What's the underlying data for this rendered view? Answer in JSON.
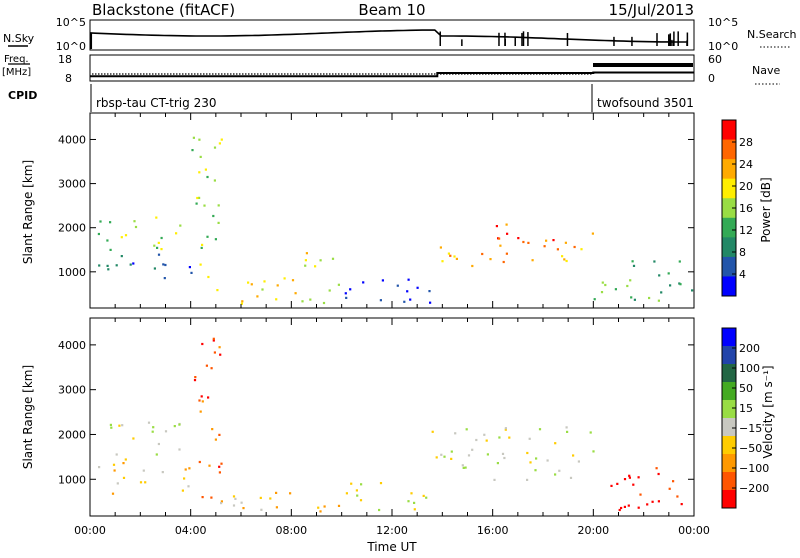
{
  "header": {
    "site": "Blackstone (fitACF)",
    "beam": "Beam 10",
    "date": "15/Jul/2013"
  },
  "summary": {
    "nsky_label": "N.Sky",
    "nsearch_label": "N.Search",
    "nsky_ticks": [
      "10^5",
      "10^0"
    ],
    "nsearch_ticks": [
      "10^5",
      "10^0"
    ],
    "freq_label_1": "Freq.",
    "freq_label_2": "[MHz]",
    "freq_ticks": [
      "18",
      "8"
    ],
    "nave_label": "Nave",
    "nave_ticks": [
      "60",
      "0"
    ],
    "cpid_label": "CPID",
    "cpid_segments": [
      {
        "label": "rbsp-tau CT-trig 230",
        "start_hour": 0,
        "end_hour": 20
      },
      {
        "label": "twofsound 3501",
        "start_hour": 20,
        "end_hour": 24
      }
    ],
    "freq_steps": [
      {
        "start_hour": 0,
        "end_hour": 13.8,
        "mhz": 10.5
      },
      {
        "start_hour": 13.8,
        "end_hour": 20,
        "mhz": 12.2
      },
      {
        "start_hour": 20,
        "end_hour": 24,
        "mhz": 12.5
      }
    ]
  },
  "chart_data": [
    {
      "type": "heatmap",
      "name": "power",
      "ylabel": "Slant Range [km]",
      "xlabel": "",
      "xlim": [
        0,
        24
      ],
      "ylim": [
        180,
        4600
      ],
      "xticks": [
        "00:00",
        "04:00",
        "08:00",
        "12:00",
        "16:00",
        "20:00",
        "00:00"
      ],
      "yticks": [
        1000,
        2000,
        3000,
        4000
      ],
      "colorbar": {
        "label": "Power [dB]",
        "ticks": [
          "28",
          "24",
          "20",
          "16",
          "12",
          "8",
          "4"
        ],
        "colors": [
          "#ff0000",
          "#ff6600",
          "#ffaa00",
          "#ffee00",
          "#99dd44",
          "#33aa55",
          "#228866",
          "#2255aa",
          "#0000ff"
        ]
      },
      "regions": [
        {
          "x": [
            0.1,
            4.0
          ],
          "y": [
            800,
            1450
          ],
          "level": 7
        },
        {
          "x": [
            0.2,
            3.8
          ],
          "y": [
            1500,
            2350
          ],
          "level": 4
        },
        {
          "x": [
            4.0,
            5.2
          ],
          "y": [
            600,
            4300
          ],
          "level": 4
        },
        {
          "x": [
            5.0,
            10.0
          ],
          "y": [
            300,
            900
          ],
          "level": 3
        },
        {
          "x": [
            8.5,
            10.0
          ],
          "y": [
            1000,
            1700
          ],
          "level": 3
        },
        {
          "x": [
            10.0,
            13.5
          ],
          "y": [
            300,
            1000
          ],
          "level": 8
        },
        {
          "x": [
            13.5,
            20.0
          ],
          "y": [
            1100,
            1600
          ],
          "level": 2
        },
        {
          "x": [
            15.0,
            20.0
          ],
          "y": [
            1600,
            2100
          ],
          "level": 1
        },
        {
          "x": [
            20.0,
            24.0
          ],
          "y": [
            300,
            1300
          ],
          "level": 5
        }
      ]
    },
    {
      "type": "heatmap",
      "name": "velocity",
      "ylabel": "Slant Range [km]",
      "xlabel": "Time UT",
      "xlim": [
        0,
        24
      ],
      "ylim": [
        180,
        4600
      ],
      "xticks": [
        "00:00",
        "04:00",
        "08:00",
        "12:00",
        "16:00",
        "20:00",
        "00:00"
      ],
      "yticks": [
        1000,
        2000,
        3000,
        4000
      ],
      "colorbar": {
        "label": "Velocity [m s⁻¹]",
        "ticks": [
          "200",
          "100",
          "50",
          "15",
          "−15",
          "−50",
          "−100",
          "−200"
        ],
        "colors": [
          "#0000ff",
          "#2244aa",
          "#226644",
          "#44aa22",
          "#99dd44",
          "#c8c8c0",
          "#ffcc00",
          "#ff9900",
          "#ff5500",
          "#ff0000"
        ]
      },
      "regions": [
        {
          "x": [
            0.1,
            4.0
          ],
          "y": [
            700,
            1500
          ],
          "level": 6
        },
        {
          "x": [
            0.2,
            3.8
          ],
          "y": [
            1500,
            2300
          ],
          "level": 5
        },
        {
          "x": [
            4.0,
            5.2
          ],
          "y": [
            600,
            4300
          ],
          "level": 8
        },
        {
          "x": [
            5.0,
            10.0
          ],
          "y": [
            300,
            900
          ],
          "level": 6
        },
        {
          "x": [
            10.0,
            13.5
          ],
          "y": [
            300,
            1000
          ],
          "level": 5
        },
        {
          "x": [
            13.5,
            20.0
          ],
          "y": [
            1000,
            2200
          ],
          "level": 5
        },
        {
          "x": [
            20.0,
            24.0
          ],
          "y": [
            300,
            1300
          ],
          "level": 9
        }
      ]
    }
  ]
}
